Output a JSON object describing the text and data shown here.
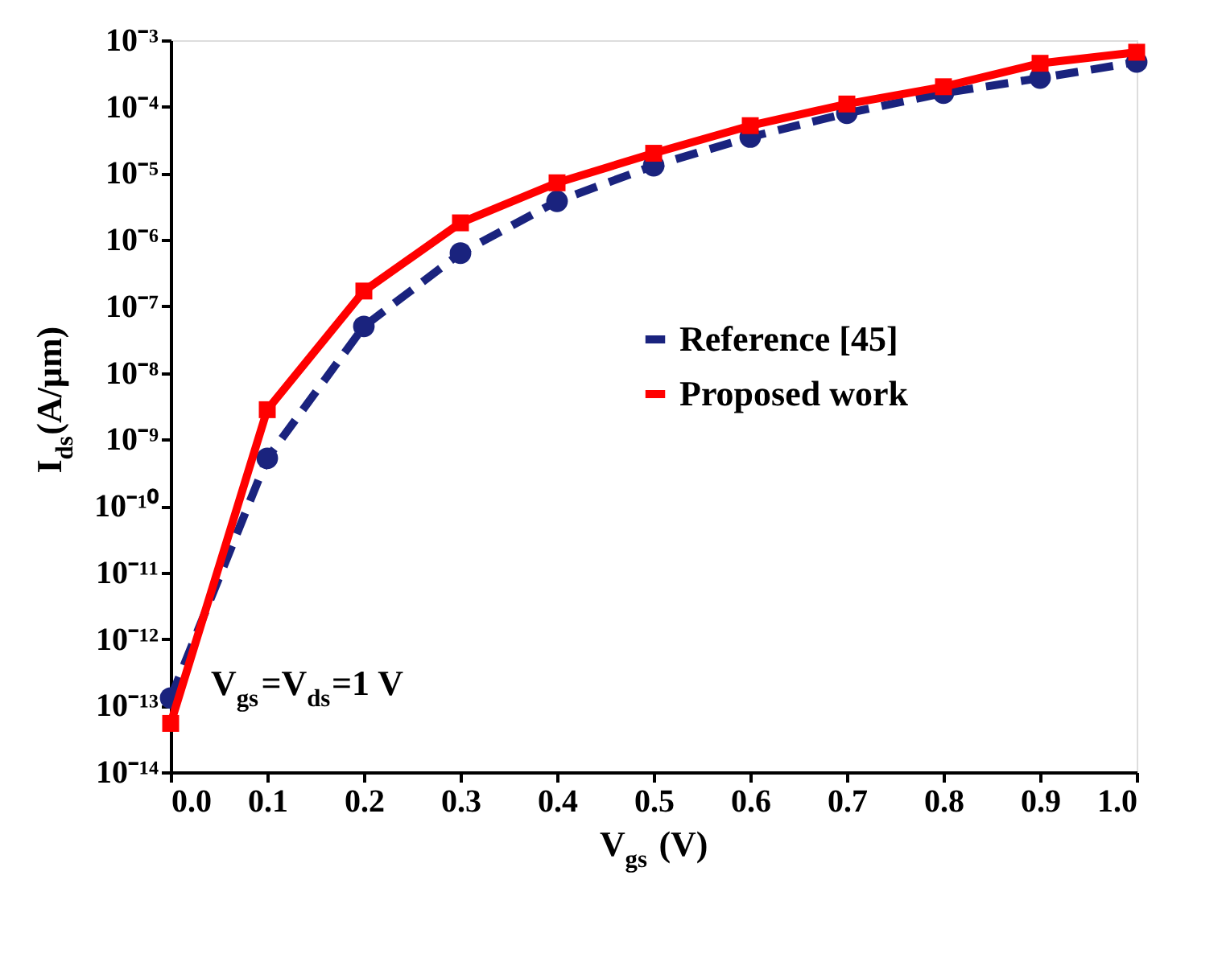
{
  "chart_data": {
    "type": "line",
    "xlabel": "V$_{gs}$ (V)",
    "ylabel": "I$_{ds}$(A/μm)",
    "x": [
      0.0,
      0.1,
      0.2,
      0.3,
      0.4,
      0.5,
      0.6,
      0.7,
      0.8,
      0.9,
      1.0
    ],
    "series": [
      {
        "name": "Reference [45]",
        "color": "#1a237e",
        "line_style": "dashed",
        "marker": "circle",
        "values": [
          1.3e-13,
          5.2e-10,
          5e-08,
          6.3e-07,
          3.8e-06,
          1.3e-05,
          3.5e-05,
          8e-05,
          0.00016,
          0.00027,
          0.00047
        ]
      },
      {
        "name": "Proposed work",
        "color": "#ff0000",
        "line_style": "solid",
        "marker": "square",
        "values": [
          5.4e-14,
          2.8e-09,
          1.7e-07,
          1.8e-06,
          7.2e-06,
          2e-05,
          5.2e-05,
          0.00011,
          0.0002,
          0.00045,
          0.00066
        ]
      }
    ],
    "log": "y",
    "grid": false,
    "legend": "center",
    "xlim": [
      0,
      1
    ],
    "xticks": [
      {
        "value": 0,
        "label": "0.0"
      },
      {
        "value": 0.1,
        "label": "0.1"
      },
      {
        "value": 0.2,
        "label": "0.2"
      },
      {
        "value": 0.3,
        "label": "0.3"
      },
      {
        "value": 0.4,
        "label": "0.4"
      },
      {
        "value": 0.5,
        "label": "0.5"
      },
      {
        "value": 0.6,
        "label": "0.6"
      },
      {
        "value": 0.7,
        "label": "0.7"
      },
      {
        "value": 0.8,
        "label": "0.8"
      },
      {
        "value": 0.9,
        "label": "0.9"
      },
      {
        "value": 1,
        "label": "1.0"
      }
    ],
    "ylim": [
      1e-14,
      0.001
    ],
    "yticks": [
      {
        "value": 1e-14,
        "label": "10⁻¹⁴"
      },
      {
        "value": 1e-13,
        "label": "10⁻¹³"
      },
      {
        "value": 1e-12,
        "label": "10⁻¹²"
      },
      {
        "value": 1e-11,
        "label": "10⁻¹¹"
      },
      {
        "value": 1e-10,
        "label": "10⁻¹⁰"
      },
      {
        "value": 1e-09,
        "label": "10⁻⁹"
      },
      {
        "value": 1e-08,
        "label": "10⁻⁸"
      },
      {
        "value": 1e-07,
        "label": "10⁻⁷"
      },
      {
        "value": 1e-06,
        "label": "10⁻⁶"
      },
      {
        "value": 1e-05,
        "label": "10⁻⁵"
      },
      {
        "value": 0.0001,
        "label": "10⁻⁴"
      },
      {
        "value": 0.001,
        "label": "10⁻³"
      }
    ],
    "annotations": [
      "V$_{gs}$=V$_{ds}$=1 V"
    ]
  }
}
